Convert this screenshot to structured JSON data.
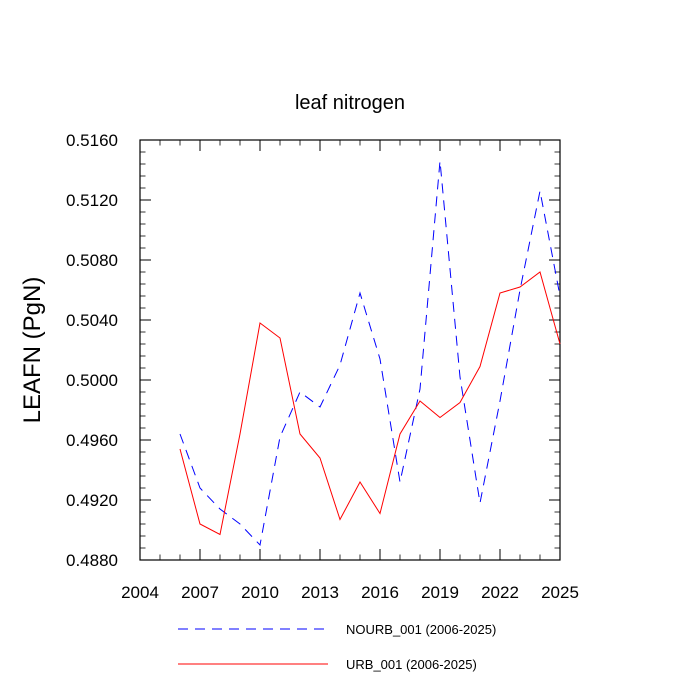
{
  "chart_data": {
    "type": "line",
    "title": "leaf nitrogen",
    "xlabel": "",
    "ylabel": "LEAFN  (PgN)",
    "xlim": [
      2004,
      2025
    ],
    "ylim": [
      0.488,
      0.516
    ],
    "x_ticks": [
      "2004",
      "2007",
      "2010",
      "2013",
      "2016",
      "2019",
      "2022",
      "2025"
    ],
    "y_ticks": [
      "0.4880",
      "0.4920",
      "0.4960",
      "0.5000",
      "0.5040",
      "0.5080",
      "0.5120",
      "0.5160"
    ],
    "grid": false,
    "legend_position": "bottom",
    "series": [
      {
        "name": "NOURB_001 (2006-2025)",
        "color": "#0000ff",
        "style": "dashed",
        "x": [
          2006,
          2007,
          2008,
          2009,
          2010,
          2011,
          2012,
          2013,
          2014,
          2015,
          2016,
          2017,
          2018,
          2019,
          2020,
          2021,
          2022,
          2023,
          2024,
          2025
        ],
        "y": [
          0.4964,
          0.4928,
          0.4914,
          0.4904,
          0.489,
          0.4962,
          0.4992,
          0.4982,
          0.501,
          0.5058,
          0.5014,
          0.4932,
          0.4994,
          0.5146,
          0.5002,
          0.4918,
          0.4986,
          0.506,
          0.5126,
          0.5056
        ]
      },
      {
        "name": "URB_001 (2006-2025)",
        "color": "#ff0000",
        "style": "solid",
        "x": [
          2006,
          2007,
          2008,
          2009,
          2010,
          2011,
          2012,
          2013,
          2014,
          2015,
          2016,
          2017,
          2018,
          2019,
          2020,
          2021,
          2022,
          2023,
          2024,
          2025
        ],
        "y": [
          0.4954,
          0.4904,
          0.4897,
          0.4964,
          0.5038,
          0.5028,
          0.4964,
          0.4948,
          0.4907,
          0.4932,
          0.4911,
          0.4964,
          0.4986,
          0.4975,
          0.4985,
          0.5009,
          0.5058,
          0.5062,
          0.5072,
          0.5024
        ]
      }
    ]
  }
}
